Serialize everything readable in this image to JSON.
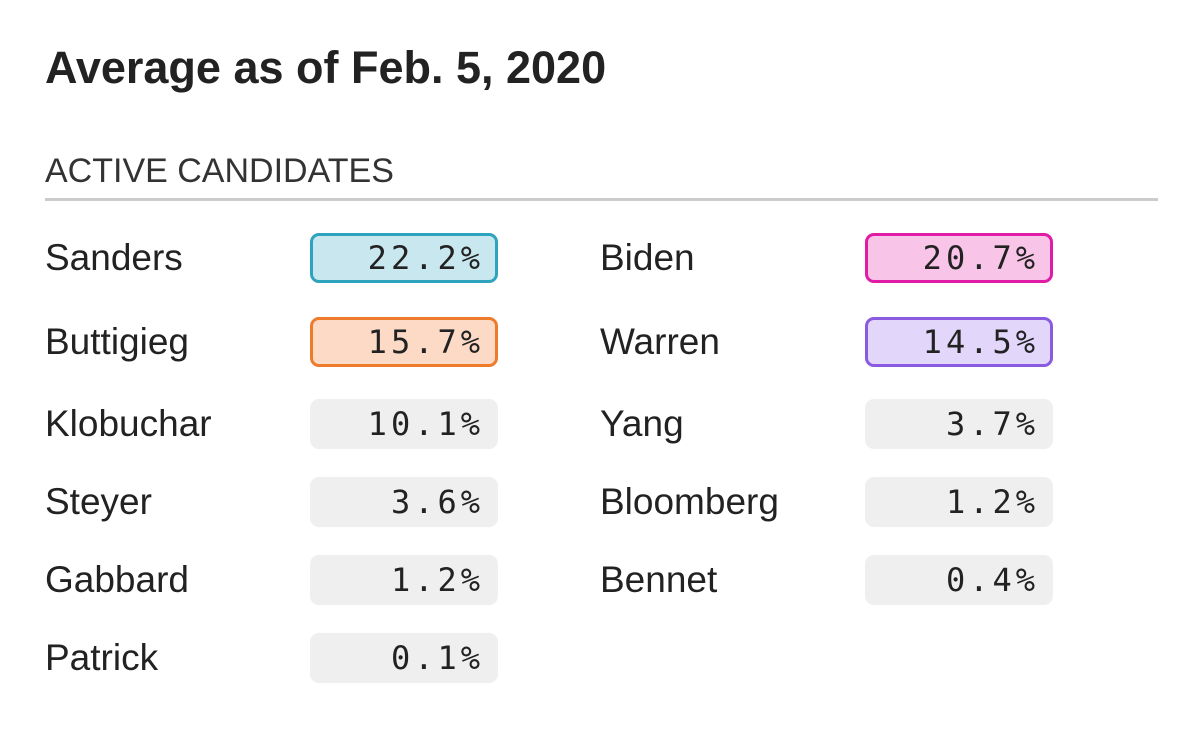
{
  "header": {
    "title": "Average as of Feb. 5, 2020",
    "section": "ACTIVE CANDIDATES"
  },
  "columns": [
    [
      {
        "name": "Sanders",
        "value": "22.2%",
        "fill": "#c9e7ee",
        "stroke": "#2ea3bd"
      },
      {
        "name": "Buttigieg",
        "value": "15.7%",
        "fill": "#fcdac6",
        "stroke": "#ee7a2c"
      },
      {
        "name": "Klobuchar",
        "value": "10.1%"
      },
      {
        "name": "Steyer",
        "value": "3.6%"
      },
      {
        "name": "Gabbard",
        "value": "1.2%"
      },
      {
        "name": "Patrick",
        "value": "0.1%"
      }
    ],
    [
      {
        "name": "Biden",
        "value": "20.7%",
        "fill": "#f8c4e7",
        "stroke": "#e01ba6"
      },
      {
        "name": "Warren",
        "value": "14.5%",
        "fill": "#e2d6fa",
        "stroke": "#8a5be0"
      },
      {
        "name": "Yang",
        "value": "3.7%"
      },
      {
        "name": "Bloomberg",
        "value": "1.2%"
      },
      {
        "name": "Bennet",
        "value": "0.4%"
      }
    ]
  ]
}
